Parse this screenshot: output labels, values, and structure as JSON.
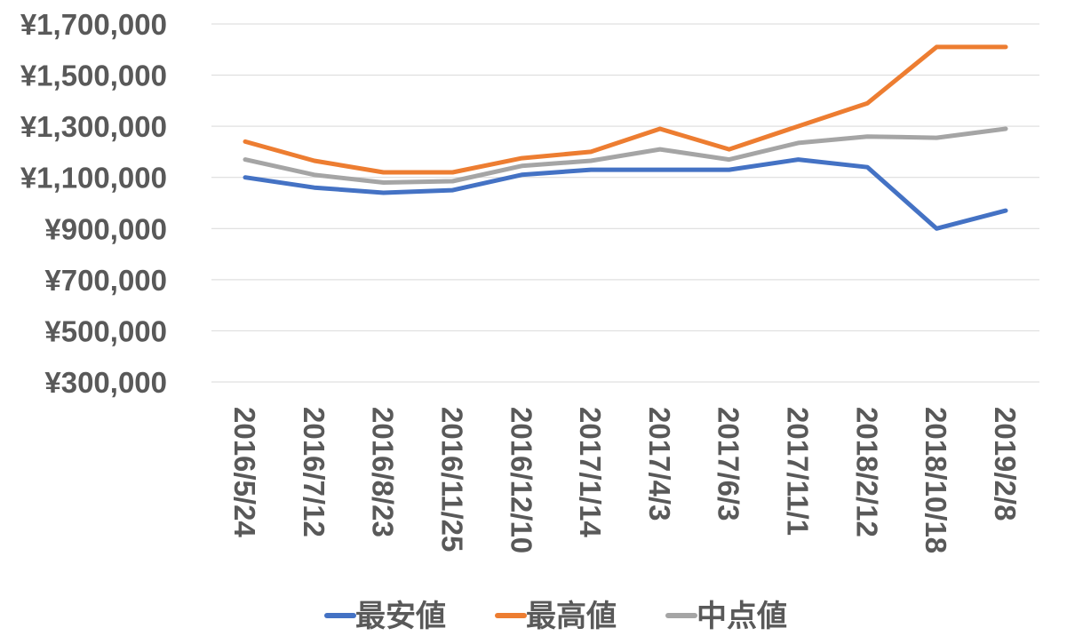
{
  "chart_data": {
    "type": "line",
    "title": "",
    "xlabel": "",
    "ylabel": "",
    "categories": [
      "2016/5/24",
      "2016/7/12",
      "2016/8/23",
      "2016/11/25",
      "2016/12/10",
      "2017/1/14",
      "2017/4/3",
      "2017/6/3",
      "2017/11/1",
      "2018/2/12",
      "2018/10/18",
      "2019/2/8"
    ],
    "series": [
      {
        "name": "最安値",
        "color": "#4472c4",
        "values": [
          1100000,
          1060000,
          1040000,
          1050000,
          1110000,
          1130000,
          1130000,
          1130000,
          1170000,
          1140000,
          900000,
          970000
        ]
      },
      {
        "name": "最高値",
        "color": "#ed7d31",
        "values": [
          1240000,
          1165000,
          1120000,
          1120000,
          1175000,
          1200000,
          1290000,
          1210000,
          1300000,
          1390000,
          1610000,
          1610000
        ]
      },
      {
        "name": "中点値",
        "color": "#a5a5a5",
        "values": [
          1170000,
          1110000,
          1080000,
          1085000,
          1145000,
          1165000,
          1210000,
          1170000,
          1235000,
          1260000,
          1255000,
          1290000
        ]
      }
    ],
    "ylim": [
      300000,
      1700000
    ],
    "y_ticks": [
      300000,
      500000,
      700000,
      900000,
      1100000,
      1300000,
      1500000,
      1700000
    ],
    "y_tick_labels": [
      "¥300,000",
      "¥500,000",
      "¥700,000",
      "¥900,000",
      "¥1,100,000",
      "¥1,300,000",
      "¥1,500,000",
      "¥1,700,000"
    ],
    "grid": true,
    "legend_position": "bottom"
  }
}
